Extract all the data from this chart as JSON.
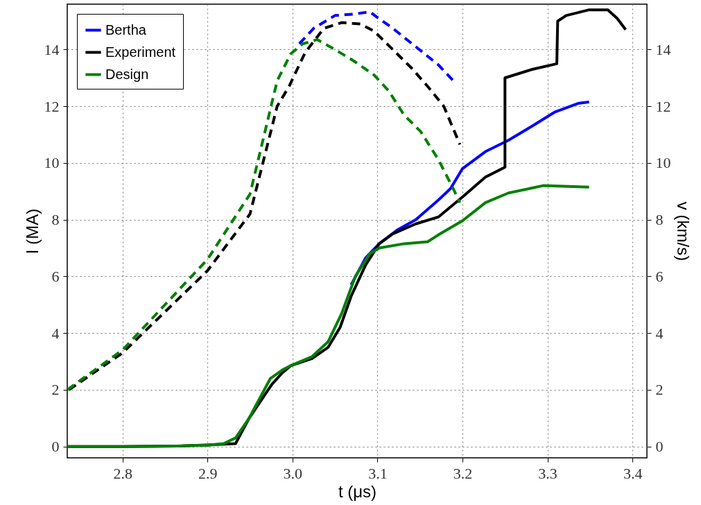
{
  "chart_data": {
    "type": "line",
    "xlabel": "t (μs)",
    "ylabel": "I (MA)",
    "y2label": "v (km/s)",
    "xlim": [
      2.735,
      3.417
    ],
    "xticks": [
      2.8,
      2.9,
      {
        "value": 3,
        "label": "3.0"
      },
      3.1,
      3.2,
      3.3,
      3.4
    ],
    "ylim": [
      -0.4,
      15.6
    ],
    "yticks": [
      0,
      2,
      4,
      6,
      8,
      10,
      12,
      14
    ],
    "y2lim": [
      -0.4,
      15.6
    ],
    "y2ticks": [
      0,
      2,
      4,
      6,
      8,
      10,
      12,
      14
    ],
    "grid": true,
    "legend": "top left",
    "line_style": "solid",
    "series": [
      {
        "name": "Bertha",
        "color": "#0000ff",
        "x": [
          3.069,
          3.086,
          3.102,
          3.123,
          3.145,
          3.172,
          3.186,
          3.2,
          3.227,
          3.254,
          3.282,
          3.309,
          3.336,
          3.349
        ],
        "values": [
          5.7,
          6.65,
          7.15,
          7.63,
          8.0,
          8.7,
          9.1,
          9.8,
          10.4,
          10.8,
          11.3,
          11.8,
          12.1,
          12.15
        ]
      },
      {
        "name": "Experiment",
        "color": "#000000",
        "x": [
          2.735,
          2.8,
          2.87,
          2.9,
          2.933,
          2.949,
          2.976,
          2.988,
          2.998,
          3.023,
          3.042,
          3.056,
          3.069,
          3.086,
          3.102,
          3.118,
          3.145,
          3.172,
          3.2,
          3.227,
          3.25,
          3.25,
          3.282,
          3.311,
          3.312,
          3.322,
          3.349,
          3.371,
          3.382,
          3.392
        ],
        "values": [
          0,
          0,
          0.02,
          0.05,
          0.1,
          1.0,
          2.2,
          2.6,
          2.85,
          3.1,
          3.5,
          4.2,
          5.3,
          6.4,
          7.15,
          7.5,
          7.85,
          8.1,
          8.8,
          9.5,
          9.85,
          13.0,
          13.3,
          13.5,
          15.0,
          15.2,
          15.4,
          15.4,
          15.1,
          14.7
        ]
      },
      {
        "name": "Design",
        "color": "#008000",
        "x": [
          2.735,
          2.8,
          2.87,
          2.902,
          2.919,
          2.933,
          2.949,
          2.974,
          2.988,
          2.998,
          3.023,
          3.042,
          3.058,
          3.074,
          3.091,
          3.102,
          3.131,
          3.159,
          3.172,
          3.2,
          3.227,
          3.254,
          3.295,
          3.349
        ],
        "values": [
          0,
          0,
          0.02,
          0.05,
          0.1,
          0.3,
          1.0,
          2.4,
          2.7,
          2.85,
          3.17,
          3.7,
          4.7,
          6.0,
          6.8,
          7.0,
          7.15,
          7.22,
          7.47,
          7.96,
          8.6,
          8.94,
          9.2,
          9.15
        ]
      },
      {
        "color": "#0000ff",
        "axis": "y2",
        "line_style": "dashed",
        "x": [
          3.008,
          3.025,
          3.05,
          3.072,
          3.091,
          3.099,
          3.118,
          3.145,
          3.172,
          3.19
        ],
        "values": [
          14.2,
          14.75,
          15.2,
          15.25,
          15.33,
          15.15,
          14.75,
          14.1,
          13.45,
          12.87
        ]
      },
      {
        "color": "#000000",
        "axis": "y2",
        "line_style": "dashed",
        "x": [
          2.737,
          2.8,
          2.9,
          2.95,
          2.982,
          2.996,
          3.015,
          3.037,
          3.058,
          3.08,
          3.096,
          3.118,
          3.14,
          3.159,
          3.178,
          3.197
        ],
        "values": [
          2.0,
          3.3,
          6.2,
          8.2,
          12.0,
          12.7,
          13.9,
          14.75,
          14.95,
          14.9,
          14.65,
          14.0,
          13.35,
          12.7,
          12.0,
          10.65
        ]
      },
      {
        "color": "#008000",
        "axis": "y2",
        "line_style": "dashed",
        "x": [
          2.735,
          2.8,
          2.9,
          2.95,
          2.982,
          2.998,
          3.012,
          3.029,
          3.05,
          3.072,
          3.096,
          3.113,
          3.131,
          3.151,
          3.172,
          3.189,
          3.197
        ],
        "values": [
          2.0,
          3.4,
          6.6,
          8.9,
          12.9,
          13.85,
          14.2,
          14.35,
          14.0,
          13.6,
          13.1,
          12.55,
          11.7,
          11.1,
          10.1,
          9.1,
          8.6
        ]
      }
    ]
  }
}
